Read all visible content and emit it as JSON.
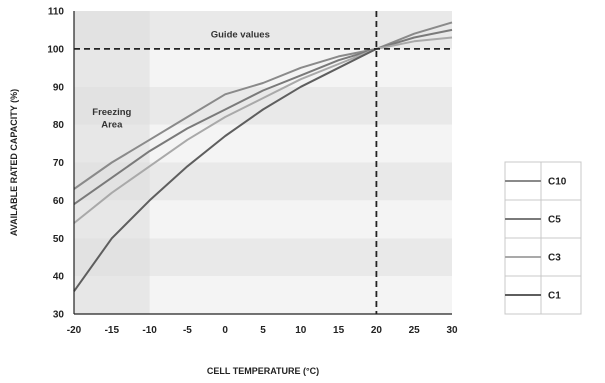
{
  "chart_data": {
    "type": "line",
    "title": "",
    "xlabel": "CELL TEMPERATURE (°C)",
    "ylabel": "AVAILABLE RATED CAPACITY (%)",
    "xlim": [
      -20,
      30
    ],
    "ylim": [
      30,
      110
    ],
    "x_ticks": [
      -20,
      -15,
      -10,
      -5,
      0,
      5,
      10,
      15,
      20,
      25,
      30
    ],
    "y_ticks": [
      30,
      40,
      50,
      60,
      70,
      80,
      90,
      100,
      110
    ],
    "x": [
      -20,
      -15,
      -10,
      -5,
      0,
      5,
      10,
      15,
      20,
      25,
      30
    ],
    "series": [
      {
        "name": "C10",
        "color": "#8a8a8a",
        "values": [
          63,
          70,
          76,
          82,
          88,
          91,
          95,
          98,
          100,
          104,
          107
        ]
      },
      {
        "name": "C5",
        "color": "#7a7a7a",
        "values": [
          59,
          66,
          73,
          79,
          84,
          89,
          93,
          97,
          100,
          103,
          105
        ]
      },
      {
        "name": "C3",
        "color": "#a9a9a9",
        "values": [
          54,
          62,
          69,
          76,
          82,
          87,
          92,
          96,
          100,
          102,
          103
        ]
      },
      {
        "name": "C1",
        "color": "#5e5e5e",
        "values": [
          36,
          50,
          60,
          69,
          77,
          84,
          90,
          95,
          100,
          null,
          null
        ]
      }
    ],
    "reference_lines": {
      "horizontal_y": 100,
      "vertical_x": 20
    },
    "annotations": {
      "guide": "Guide values",
      "freezing_line1": "Freezing",
      "freezing_line2": "Area"
    },
    "freezing_area_xrange": [
      -20,
      -10
    ],
    "grid": false,
    "legend_position": "right"
  }
}
